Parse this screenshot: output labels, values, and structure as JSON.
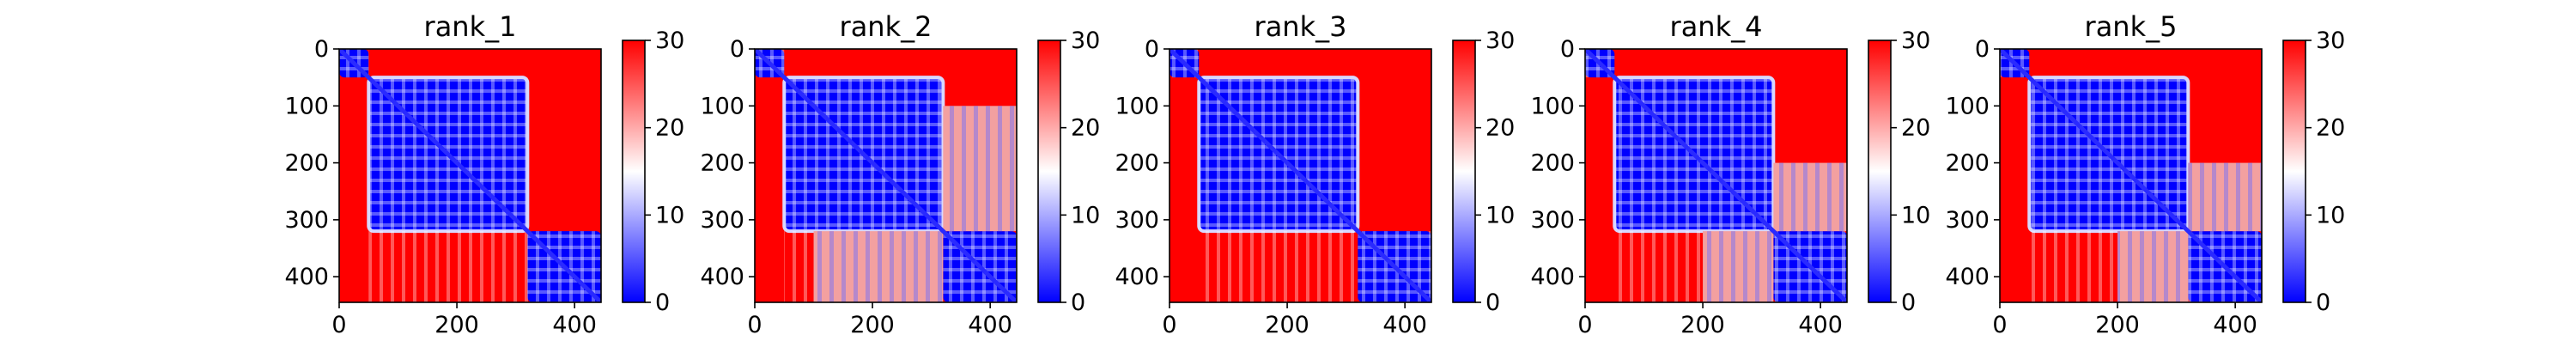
{
  "chart_data": [
    {
      "type": "heatmap",
      "title": "rank_1",
      "xticks": [
        0,
        200,
        400
      ],
      "yticks": [
        0,
        100,
        200,
        300,
        400
      ],
      "xlim": [
        0,
        445
      ],
      "ylim": [
        445,
        0
      ],
      "colorbar": {
        "ticks": [
          0,
          10,
          20,
          30
        ],
        "range": [
          0,
          30
        ],
        "colormap": "bwr"
      },
      "domains": [
        [
          0,
          50
        ],
        [
          50,
          320
        ],
        [
          320,
          445
        ]
      ],
      "off_domain_mixed_block": "none"
    },
    {
      "type": "heatmap",
      "title": "rank_2",
      "xticks": [
        0,
        200,
        400
      ],
      "yticks": [
        0,
        100,
        200,
        300,
        400
      ],
      "xlim": [
        0,
        445
      ],
      "ylim": [
        445,
        0
      ],
      "colorbar": {
        "ticks": [
          0,
          10,
          20,
          30
        ],
        "range": [
          0,
          30
        ],
        "colormap": "bwr"
      },
      "domains": [
        [
          0,
          50
        ],
        [
          50,
          320
        ],
        [
          320,
          445
        ]
      ],
      "off_domain_mixed_block": "rows 100-320 x cols 320-445"
    },
    {
      "type": "heatmap",
      "title": "rank_3",
      "xticks": [
        0,
        200,
        400
      ],
      "yticks": [
        0,
        100,
        200,
        300,
        400
      ],
      "xlim": [
        0,
        445
      ],
      "ylim": [
        445,
        0
      ],
      "colorbar": {
        "ticks": [
          0,
          10,
          20,
          30
        ],
        "range": [
          0,
          30
        ],
        "colormap": "bwr"
      },
      "domains": [
        [
          0,
          50
        ],
        [
          50,
          320
        ],
        [
          320,
          445
        ]
      ],
      "off_domain_mixed_block": "none"
    },
    {
      "type": "heatmap",
      "title": "rank_4",
      "xticks": [
        0,
        200,
        400
      ],
      "yticks": [
        0,
        100,
        200,
        300,
        400
      ],
      "xlim": [
        0,
        445
      ],
      "ylim": [
        445,
        0
      ],
      "colorbar": {
        "ticks": [
          0,
          10,
          20,
          30
        ],
        "range": [
          0,
          30
        ],
        "colormap": "bwr"
      },
      "domains": [
        [
          0,
          50
        ],
        [
          50,
          320
        ],
        [
          320,
          445
        ]
      ],
      "off_domain_mixed_block": "rows 200-320 x cols 320-445"
    },
    {
      "type": "heatmap",
      "title": "rank_5",
      "xticks": [
        0,
        200,
        400
      ],
      "yticks": [
        0,
        100,
        200,
        300,
        400
      ],
      "xlim": [
        0,
        445
      ],
      "ylim": [
        445,
        0
      ],
      "colorbar": {
        "ticks": [
          0,
          10,
          20,
          30
        ],
        "range": [
          0,
          30
        ],
        "colormap": "bwr"
      },
      "domains": [
        [
          0,
          50
        ],
        [
          50,
          320
        ],
        [
          320,
          445
        ]
      ],
      "off_domain_mixed_block": "rows 200-320 x cols 320-445"
    }
  ],
  "colors": {
    "low": "#0000ff",
    "mid": "#ffffff",
    "high": "#ff0000"
  }
}
